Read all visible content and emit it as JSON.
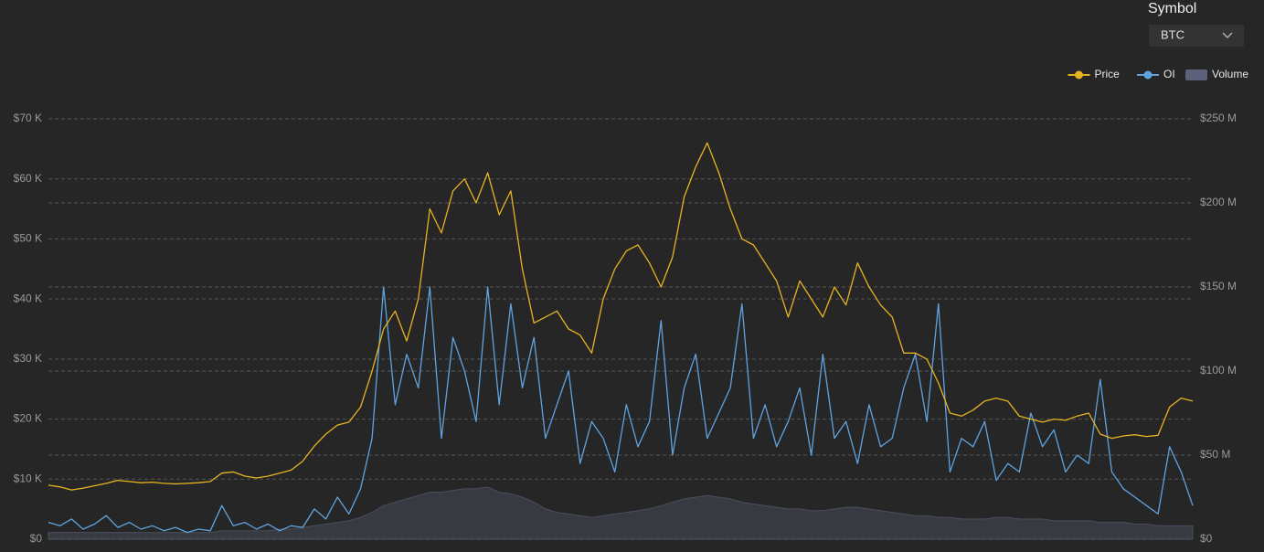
{
  "symbol_selector": {
    "label": "Symbol",
    "value": "BTC"
  },
  "chart_data": {
    "type": "line",
    "legend": "top-right",
    "grid": true,
    "ylim": [
      0,
      70
    ],
    "yticks": [
      {
        "value": 0,
        "label": "$0"
      },
      {
        "value": 10,
        "label": "$10 K"
      },
      {
        "value": 20,
        "label": "$20 K"
      },
      {
        "value": 30,
        "label": "$30 K"
      },
      {
        "value": 40,
        "label": "$40 K"
      },
      {
        "value": 50,
        "label": "$50 K"
      },
      {
        "value": 60,
        "label": "$60 K"
      },
      {
        "value": 70,
        "label": "$70 K"
      }
    ],
    "y2lim": [
      0,
      250
    ],
    "y2ticks": [
      {
        "value": 0,
        "label": "$0"
      },
      {
        "value": 50,
        "label": "$50 M"
      },
      {
        "value": 100,
        "label": "$100 M"
      },
      {
        "value": 150,
        "label": "$150 M"
      },
      {
        "value": 200,
        "label": "$200 M"
      },
      {
        "value": 250,
        "label": "$250 M"
      }
    ],
    "series": [
      {
        "name": "Price",
        "type": "line",
        "axis": "y",
        "color": "#e6b422",
        "values": [
          9.0,
          8.7,
          8.2,
          8.5,
          8.9,
          9.3,
          9.8,
          9.6,
          9.4,
          9.5,
          9.3,
          9.2,
          9.3,
          9.4,
          9.6,
          11.0,
          11.2,
          10.5,
          10.2,
          10.5,
          11.0,
          11.5,
          13.0,
          15.5,
          17.5,
          19.0,
          19.5,
          22.0,
          28.0,
          35.0,
          38.0,
          33.0,
          40.0,
          55.0,
          51.0,
          58.0,
          60.0,
          56.0,
          61.0,
          54.0,
          58.0,
          45.0,
          36.0,
          37.0,
          38.0,
          35.0,
          34.0,
          31.0,
          40.0,
          45.0,
          48.0,
          49.0,
          46.0,
          42.0,
          47.0,
          57.0,
          62.0,
          66.0,
          61.0,
          55.0,
          50.0,
          49.0,
          46.0,
          43.0,
          37.0,
          43.0,
          40.0,
          37.0,
          42.0,
          39.0,
          46.0,
          42.0,
          39.0,
          37.0,
          31.0,
          31.0,
          30.0,
          26.0,
          21.0,
          20.5,
          21.5,
          23.0,
          23.5,
          23.0,
          20.5,
          20.0,
          19.5,
          20.0,
          19.8,
          20.5,
          21.0,
          17.5,
          16.8,
          17.2,
          17.4,
          17.1,
          17.3,
          22.0,
          23.5,
          23.0
        ]
      },
      {
        "name": "OI",
        "type": "line",
        "axis": "y2",
        "color": "#5fa3e0",
        "values": [
          10,
          8,
          12,
          6,
          9,
          14,
          7,
          10,
          6,
          8,
          5,
          7,
          4,
          6,
          5,
          20,
          8,
          10,
          6,
          9,
          5,
          8,
          7,
          18,
          12,
          25,
          15,
          30,
          60,
          150,
          80,
          110,
          90,
          150,
          60,
          120,
          100,
          70,
          150,
          80,
          140,
          90,
          120,
          60,
          80,
          100,
          45,
          70,
          60,
          40,
          80,
          55,
          70,
          130,
          50,
          90,
          110,
          60,
          75,
          90,
          140,
          60,
          80,
          55,
          70,
          90,
          50,
          110,
          60,
          70,
          45,
          80,
          55,
          60,
          90,
          110,
          70,
          140,
          40,
          60,
          55,
          70,
          35,
          45,
          40,
          75,
          55,
          65,
          40,
          50,
          45,
          95,
          40,
          30,
          25,
          20,
          15,
          55,
          40,
          20
        ]
      },
      {
        "name": "Volume",
        "type": "area",
        "axis": "y2",
        "color": "#5c6078",
        "values": [
          4,
          4,
          4,
          4,
          4,
          4,
          4,
          4,
          4,
          4,
          4,
          4,
          4,
          4,
          4,
          5,
          5,
          5,
          5,
          5,
          6,
          6,
          7,
          8,
          9,
          10,
          11,
          13,
          16,
          20,
          22,
          24,
          26,
          28,
          28,
          29,
          30,
          30,
          31,
          28,
          27,
          25,
          22,
          18,
          16,
          15,
          14,
          13,
          14,
          15,
          16,
          17,
          18,
          20,
          22,
          24,
          25,
          26,
          25,
          24,
          22,
          21,
          20,
          19,
          18,
          18,
          17,
          17,
          18,
          19,
          19,
          18,
          17,
          16,
          15,
          14,
          14,
          13,
          13,
          12,
          12,
          12,
          13,
          13,
          12,
          12,
          12,
          11,
          11,
          11,
          11,
          10,
          10,
          10,
          9,
          9,
          8,
          8,
          8,
          8
        ]
      }
    ]
  }
}
